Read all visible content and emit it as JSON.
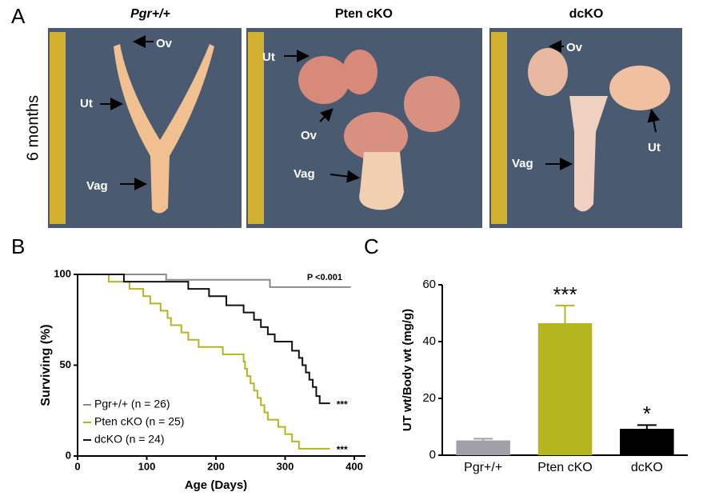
{
  "panel_a": {
    "label": "A",
    "row_label": "6 months",
    "photos": [
      {
        "title": "Pgr+/+",
        "annotations": [
          "Ov",
          "Ut",
          "Vag"
        ]
      },
      {
        "title": "Pten cKO",
        "annotations": [
          "Ut",
          "Ov",
          "Vag"
        ]
      },
      {
        "title": "dcKO",
        "annotations": [
          "Ov",
          "Vag",
          "Ut"
        ]
      }
    ]
  },
  "chart_data": [
    {
      "type": "step",
      "panel_label": "B",
      "x_label": "Age (Days)",
      "y_label": "Surviving (%)",
      "annotation": "P <0.001",
      "xlim": [
        0,
        400
      ],
      "xticks": [
        0,
        100,
        200,
        300,
        400
      ],
      "ylim": [
        0,
        100
      ],
      "yticks": [
        0,
        50,
        100
      ],
      "legend": "lower-left",
      "series": [
        {
          "name": "Pgr+/+ (n = 26)",
          "color": "#8c8c8c",
          "x": [
            0,
            128,
            278,
            395
          ],
          "values": [
            100,
            97,
            93,
            93
          ]
        },
        {
          "name": "Pten cKO (n = 25)",
          "color": "#b5b520",
          "significance": "***",
          "x": [
            0,
            45,
            75,
            95,
            105,
            120,
            130,
            135,
            150,
            160,
            175,
            210,
            240,
            242,
            245,
            250,
            255,
            260,
            265,
            270,
            275,
            290,
            300,
            310,
            320,
            365
          ],
          "values": [
            100,
            96,
            92,
            88,
            84,
            80,
            76,
            72,
            68,
            64,
            60,
            56,
            52,
            48,
            44,
            40,
            36,
            32,
            28,
            24,
            20,
            16,
            12,
            8,
            4,
            4
          ]
        },
        {
          "name": "dcKO (n = 24)",
          "color": "#111111",
          "significance": "***",
          "x": [
            0,
            67,
            160,
            190,
            215,
            240,
            255,
            265,
            275,
            285,
            310,
            320,
            325,
            330,
            335,
            340,
            345,
            350,
            365
          ],
          "values": [
            100,
            96,
            92,
            88,
            83,
            79,
            75,
            71,
            67,
            63,
            58,
            54,
            50,
            46,
            42,
            38,
            33,
            29,
            29
          ]
        }
      ]
    },
    {
      "type": "bar",
      "panel_label": "C",
      "y_label": "UT wt/Body wt (mg/g)",
      "ylim": [
        0,
        60
      ],
      "yticks": [
        0,
        20,
        40,
        60
      ],
      "categories": [
        "Pgr+/+",
        "Pten cKO",
        "dcKO"
      ],
      "values": [
        5.2,
        46.5,
        9.3
      ],
      "errors": [
        0.6,
        6.2,
        1.3
      ],
      "colors": [
        "#a0a0a8",
        "#b5b520",
        "#000000"
      ],
      "significance": [
        null,
        "***",
        "*"
      ]
    }
  ]
}
